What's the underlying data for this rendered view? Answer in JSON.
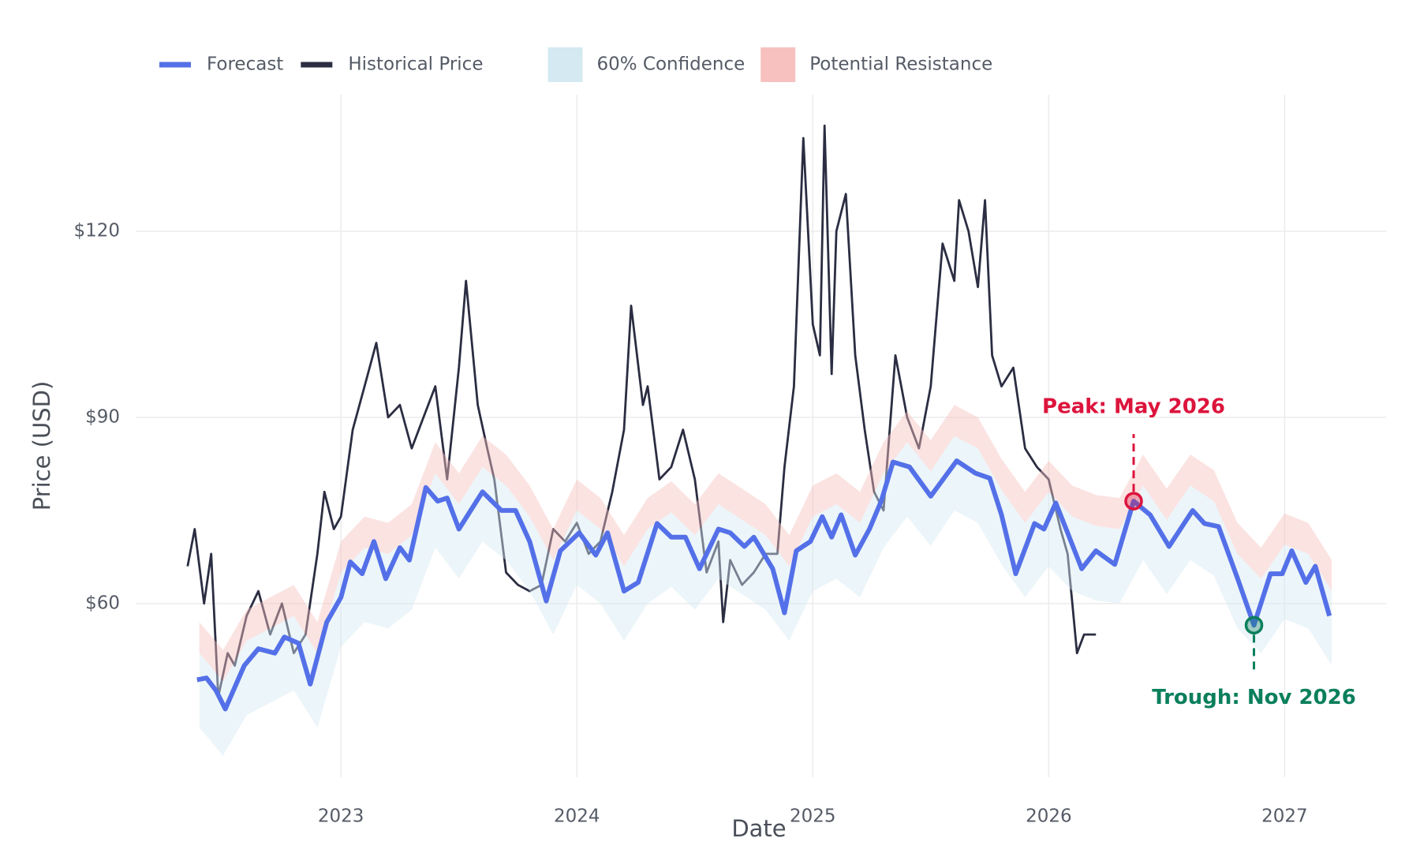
{
  "chart_data": {
    "type": "line",
    "x_label": "Date",
    "y_label": "Price (USD)",
    "xlim": [
      2022.13,
      2027.43
    ],
    "xticks": [
      2023,
      2024,
      2025,
      2026,
      2027
    ],
    "ylim": [
      32,
      142
    ],
    "yticks": [
      {
        "value": 60,
        "label": "$60"
      },
      {
        "value": 90,
        "label": "$90"
      },
      {
        "value": 120,
        "label": "$120"
      }
    ],
    "grid": true,
    "legend": "top",
    "series": [
      {
        "name": "Forecast",
        "color": "#5470e8",
        "x": [
          2022.39,
          2022.43,
          2022.47,
          2022.51,
          2022.59,
          2022.65,
          2022.72,
          2022.76,
          2022.82,
          2022.87,
          2022.94,
          2023.0,
          2023.04,
          2023.09,
          2023.14,
          2023.19,
          2023.25,
          2023.29,
          2023.36,
          2023.41,
          2023.45,
          2023.5,
          2023.6,
          2023.68,
          2023.74,
          2023.8,
          2023.87,
          2023.93,
          2024.01,
          2024.08,
          2024.13,
          2024.2,
          2024.26,
          2024.34,
          2024.4,
          2024.46,
          2024.52,
          2024.6,
          2024.65,
          2024.71,
          2024.75,
          2024.83,
          2024.88,
          2024.93,
          2024.99,
          2025.04,
          2025.08,
          2025.12,
          2025.18,
          2025.24,
          2025.29,
          2025.34,
          2025.41,
          2025.5,
          2025.61,
          2025.69,
          2025.75,
          2025.8,
          2025.86,
          2025.94,
          2025.98,
          2026.03,
          2026.08,
          2026.14,
          2026.2,
          2026.28,
          2026.36,
          2026.43,
          2026.51,
          2026.61,
          2026.66,
          2026.72,
          2026.8,
          2026.87,
          2026.94,
          2026.99,
          2027.03,
          2027.09,
          2027.13,
          2027.19
        ],
        "values": [
          47.7,
          48,
          46,
          43,
          50,
          52.7,
          52,
          54.6,
          53.6,
          47,
          57,
          61,
          66.7,
          64.8,
          70,
          64,
          69,
          67,
          78.7,
          76.5,
          77,
          72,
          78,
          75,
          75,
          70,
          60.4,
          68.5,
          71.4,
          67.8,
          71.4,
          62,
          63.4,
          72.9,
          70.7,
          70.7,
          65.6,
          72,
          71.4,
          69.2,
          70.7,
          65.6,
          58.5,
          68.5,
          70,
          74,
          70.7,
          74.3,
          67.8,
          72,
          76.5,
          82.8,
          82,
          77.3,
          83,
          81,
          80.2,
          74.3,
          64.8,
          72.9,
          72,
          76.2,
          71.4,
          65.6,
          68.5,
          66.3,
          76.5,
          74.3,
          69.2,
          75,
          72.9,
          72.4,
          64.1,
          56.5,
          64.8,
          64.8,
          68.5,
          63.4,
          66,
          58
        ]
      },
      {
        "name": "Historical Price",
        "color": "#2b2d42",
        "x": [
          2022.35,
          2022.38,
          2022.42,
          2022.45,
          2022.48,
          2022.52,
          2022.55,
          2022.6,
          2022.65,
          2022.7,
          2022.75,
          2022.8,
          2022.85,
          2022.9,
          2022.93,
          2022.97,
          2023.0,
          2023.05,
          2023.1,
          2023.15,
          2023.2,
          2023.25,
          2023.3,
          2023.35,
          2023.4,
          2023.45,
          2023.5,
          2023.53,
          2023.58,
          2023.62,
          2023.65,
          2023.7,
          2023.75,
          2023.8,
          2023.85,
          2023.9,
          2023.95,
          2024.0,
          2024.05,
          2024.1,
          2024.15,
          2024.2,
          2024.23,
          2024.28,
          2024.3,
          2024.35,
          2024.4,
          2024.45,
          2024.5,
          2024.55,
          2024.6,
          2024.62,
          2024.65,
          2024.7,
          2024.75,
          2024.8,
          2024.85,
          2024.88,
          2024.92,
          2024.96,
          2025.0,
          2025.03,
          2025.05,
          2025.08,
          2025.1,
          2025.14,
          2025.18,
          2025.22,
          2025.26,
          2025.3,
          2025.35,
          2025.4,
          2025.45,
          2025.5,
          2025.55,
          2025.6,
          2025.62,
          2025.66,
          2025.7,
          2025.73,
          2025.76,
          2025.8,
          2025.85,
          2025.9,
          2025.95,
          2026.0,
          2026.05,
          2026.08,
          2026.1,
          2026.12,
          2026.15,
          2026.2
        ],
        "values": [
          66,
          72,
          60,
          68,
          45,
          52,
          50,
          58,
          62,
          55,
          60,
          52,
          55,
          68,
          78,
          72,
          74,
          88,
          95,
          102,
          90,
          92,
          85,
          90,
          95,
          80,
          98,
          112,
          92,
          85,
          80,
          65,
          63,
          62,
          63,
          72,
          70,
          73,
          68,
          70,
          78,
          88,
          108,
          92,
          95,
          80,
          82,
          88,
          80,
          65,
          70,
          57,
          67,
          63,
          65,
          68,
          68,
          82,
          95,
          135,
          105,
          100,
          137,
          97,
          120,
          126,
          100,
          88,
          78,
          75,
          100,
          90,
          85,
          95,
          118,
          112,
          125,
          120,
          111,
          125,
          100,
          95,
          98,
          85,
          82,
          80,
          72,
          68,
          60,
          52,
          55,
          55
        ]
      }
    ],
    "band_x": [
      2022.4,
      2022.5,
      2022.6,
      2022.7,
      2022.8,
      2022.9,
      2023.0,
      2023.1,
      2023.2,
      2023.3,
      2023.4,
      2023.5,
      2023.6,
      2023.7,
      2023.8,
      2023.9,
      2024.0,
      2024.1,
      2024.2,
      2024.3,
      2024.4,
      2024.5,
      2024.6,
      2024.7,
      2024.8,
      2024.9,
      2025.0,
      2025.1,
      2025.2,
      2025.3,
      2025.4,
      2025.5,
      2025.6,
      2025.7,
      2025.8,
      2025.9,
      2026.0,
      2026.1,
      2026.2,
      2026.3,
      2026.4,
      2026.5,
      2026.6,
      2026.7,
      2026.8,
      2026.9,
      2027.0,
      2027.1,
      2027.2
    ],
    "bands": [
      {
        "name": "60% Confidence",
        "color": "#d4e9f2",
        "low": [
          40,
          35.5,
          42,
          44,
          46,
          40,
          53,
          57,
          56,
          59,
          69,
          64,
          70,
          67,
          62,
          55,
          63,
          60,
          54,
          60,
          62.7,
          59,
          64,
          61.5,
          59,
          54,
          62,
          64,
          61,
          69,
          74,
          69.3,
          75,
          73,
          66.3,
          61,
          66,
          62,
          60.5,
          60,
          67,
          61.5,
          67,
          64.5,
          56,
          52,
          57.5,
          56,
          50
        ],
        "high": [
          52,
          47.5,
          54,
          56,
          58,
          52,
          65,
          69,
          68,
          71,
          81,
          76,
          82,
          79,
          74,
          67,
          75,
          72,
          66,
          72,
          74.7,
          71,
          76,
          73.5,
          71,
          66,
          74,
          76,
          73,
          81,
          86,
          81.3,
          87,
          85,
          78.3,
          73,
          78,
          74,
          72.5,
          72,
          79,
          73.5,
          79,
          76.5,
          68,
          64,
          69.5,
          68,
          62
        ]
      },
      {
        "name": "Potential Resistance",
        "color": "#f7c1bf",
        "low": [
          52,
          47.5,
          54,
          56,
          58,
          52,
          65,
          69,
          68,
          71,
          81,
          76,
          82,
          79,
          74,
          67,
          75,
          72,
          66,
          72,
          74.7,
          71,
          76,
          73.5,
          71,
          66,
          74,
          76,
          73,
          81,
          86,
          81.3,
          87,
          85,
          78.3,
          73,
          78,
          74,
          72.5,
          72,
          79,
          73.5,
          79,
          76.5,
          68,
          64,
          69.5,
          68,
          62
        ],
        "high": [
          57,
          52.5,
          59,
          61,
          63,
          57,
          70,
          74,
          73,
          76,
          86,
          81,
          87,
          84,
          79,
          72,
          80,
          77,
          71,
          77,
          79.7,
          76,
          81,
          78.5,
          76,
          71,
          79,
          81,
          78,
          86,
          91,
          86.3,
          92,
          90,
          83.3,
          78,
          83,
          79,
          77.5,
          77,
          84,
          78.5,
          84,
          81.5,
          73,
          69,
          74.5,
          73,
          67
        ]
      }
    ],
    "annotations": [
      {
        "text": "Peak: May 2026",
        "x": 2026.36,
        "y": 76.5,
        "color": "#dc143c",
        "side": "above"
      },
      {
        "text": "Trough: Nov 2026",
        "x": 2026.87,
        "y": 56.5,
        "color": "#0b7f5c",
        "side": "below"
      }
    ]
  }
}
